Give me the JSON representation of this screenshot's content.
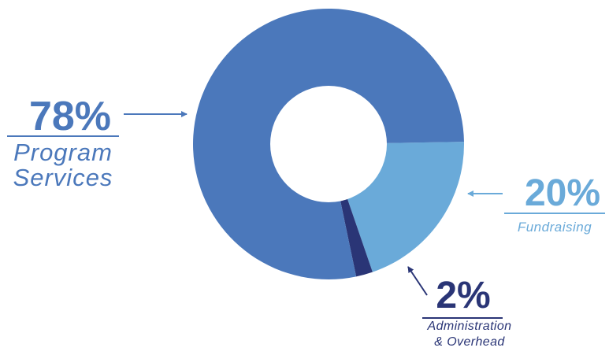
{
  "chart_data": {
    "type": "pie",
    "donut": true,
    "legend": "none",
    "slices": [
      {
        "percent_label": "78%",
        "name_lines": [
          "Program",
          "Services"
        ],
        "value": 78,
        "color": "#4b78bb"
      },
      {
        "percent_label": "20%",
        "name_lines": [
          "Fundraising"
        ],
        "value": 20,
        "color": "#6aaad9"
      },
      {
        "percent_label": "2%",
        "name_lines": [
          "Administration",
          "& Overhead"
        ],
        "value": 2,
        "color": "#2a3576"
      }
    ]
  }
}
